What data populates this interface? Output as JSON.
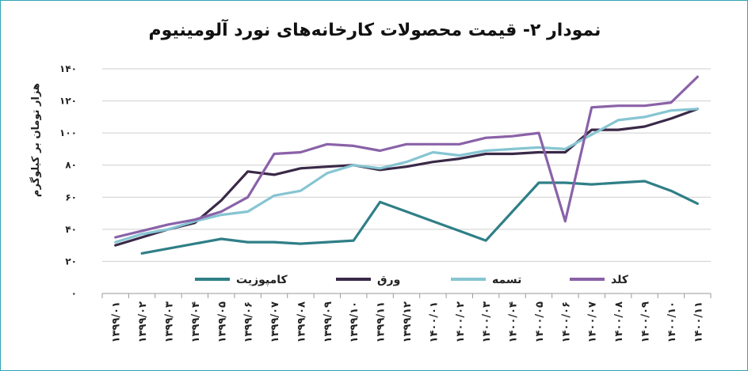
{
  "chart_data": {
    "type": "line",
    "title": "نمودار ۲- قیمت محصولات کارخانه‌های نورد آلومینیوم",
    "ylabel": "هزار تومان بر کیلوگرم",
    "ylim": [
      0,
      140
    ],
    "yticks": [
      "۰",
      "۲۰",
      "۴۰",
      "۶۰",
      "۸۰",
      "۱۰۰",
      "۱۲۰",
      "۱۴۰"
    ],
    "yticks_values": [
      0,
      20,
      40,
      60,
      80,
      100,
      120,
      140
    ],
    "grid": true,
    "legend_position": "bottom-inside",
    "categories": [
      "۱۳۹۹/۰۱",
      "۱۳۹۹/۰۲",
      "۱۳۹۹/۰۳",
      "۱۳۹۹/۰۴",
      "۱۳۹۹/۰۵",
      "۱۳۹۹/۰۶",
      "۱۳۹۹/۰۷",
      "۱۳۹۹/۰۸",
      "۱۳۹۹/۰۹",
      "۱۳۹۹/۱۰",
      "۱۳۹۹/۱۱",
      "۱۳۹۹/۱۲",
      "۱۴۰۰/۰۱",
      "۱۴۰۰/۰۲",
      "۱۴۰۰/۰۳",
      "۱۴۰۰/۰۴",
      "۱۴۰۰/۰۵",
      "۱۴۰۰/۰۶",
      "۱۴۰۰/۰۷",
      "۱۴۰۰/۰۸",
      "۱۴۰۰/۰۹",
      "۱۴۰۰/۱۰",
      "۱۴۰۰/۱۱"
    ],
    "series": [
      {
        "name": "کامپوزیت",
        "color": "#2f7f87",
        "values": [
          null,
          25,
          28,
          31,
          34,
          32,
          32,
          31,
          32,
          33,
          57,
          51,
          45,
          39,
          33,
          51,
          69,
          69,
          68,
          69,
          70,
          64,
          56
        ]
      },
      {
        "name": "ورق",
        "color": "#3a2947",
        "values": [
          30,
          35,
          40,
          44,
          58,
          76,
          74,
          78,
          79,
          80,
          77,
          79,
          82,
          84,
          87,
          87,
          88,
          88,
          102,
          102,
          104,
          109,
          115
        ]
      },
      {
        "name": "تسمه",
        "color": "#86c5d2",
        "values": [
          32,
          37,
          40,
          45,
          49,
          51,
          61,
          64,
          75,
          80,
          78,
          82,
          88,
          86,
          89,
          90,
          91,
          90,
          99,
          108,
          110,
          114,
          115
        ]
      },
      {
        "name": "کلد",
        "color": "#8a62a8",
        "values": [
          35,
          39,
          43,
          46,
          51,
          60,
          87,
          88,
          93,
          92,
          89,
          93,
          93,
          93,
          97,
          98,
          100,
          45,
          116,
          117,
          117,
          119,
          135
        ]
      }
    ]
  }
}
